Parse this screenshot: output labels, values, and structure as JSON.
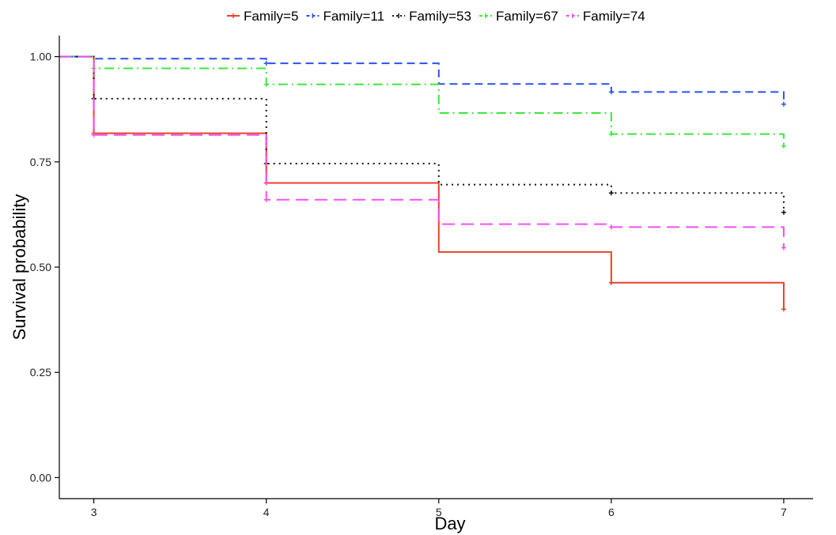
{
  "chart_data": {
    "type": "line",
    "subtype": "step",
    "title": "",
    "xlabel": "Day",
    "ylabel": "Survival probability",
    "xlim": [
      2.8,
      7.17
    ],
    "ylim": [
      -0.05,
      1.05
    ],
    "x_ticks": [
      3,
      4,
      5,
      6,
      7
    ],
    "x_tick_labels": [
      "3",
      "4",
      "5",
      "6",
      "7"
    ],
    "y_ticks": [
      0,
      0.25,
      0.5,
      0.75,
      1.0
    ],
    "y_tick_labels": [
      "0.00",
      "0.25",
      "0.50",
      "0.75",
      "1.00"
    ],
    "grid": false,
    "legend_position": "top",
    "series": [
      {
        "name": "Family=5",
        "color": "#e8402e",
        "dash": "solid",
        "x": [
          2.8,
          3,
          4,
          5,
          6,
          7
        ],
        "y": [
          1.0,
          0.818,
          0.7,
          0.536,
          0.463,
          0.4
        ],
        "censor_x": [
          3,
          4,
          6,
          7
        ],
        "censor_y": [
          0.818,
          0.7,
          0.463,
          0.4
        ]
      },
      {
        "name": "Family=11",
        "color": "#2e4ff0",
        "dash": "dashed",
        "x": [
          2.8,
          3,
          4,
          5,
          6,
          7
        ],
        "y": [
          1.0,
          0.995,
          0.984,
          0.935,
          0.916,
          0.887
        ],
        "censor_x": [
          4,
          6,
          7
        ],
        "censor_y": [
          0.984,
          0.916,
          0.887
        ]
      },
      {
        "name": "Family=53",
        "color": "#111111",
        "dash": "dotted",
        "x": [
          2.8,
          3,
          4,
          5,
          6,
          7
        ],
        "y": [
          1.0,
          0.9,
          0.746,
          0.696,
          0.676,
          0.63
        ],
        "censor_x": [
          3,
          4,
          6,
          7
        ],
        "censor_y": [
          0.9,
          0.746,
          0.676,
          0.63
        ]
      },
      {
        "name": "Family=67",
        "color": "#3de63d",
        "dash": "dotdash",
        "x": [
          2.8,
          3,
          4,
          5,
          6,
          7
        ],
        "y": [
          1.0,
          0.972,
          0.934,
          0.866,
          0.816,
          0.788
        ],
        "censor_x": [
          3,
          4,
          6,
          7
        ],
        "censor_y": [
          0.972,
          0.934,
          0.816,
          0.788
        ]
      },
      {
        "name": "Family=74",
        "color": "#f050f0",
        "dash": "longdash",
        "x": [
          2.8,
          3,
          4,
          5,
          6,
          7
        ],
        "y": [
          1.0,
          0.814,
          0.66,
          0.602,
          0.595,
          0.546
        ],
        "censor_x": [
          3,
          4,
          6,
          7
        ],
        "censor_y": [
          0.814,
          0.66,
          0.595,
          0.546
        ]
      }
    ]
  }
}
